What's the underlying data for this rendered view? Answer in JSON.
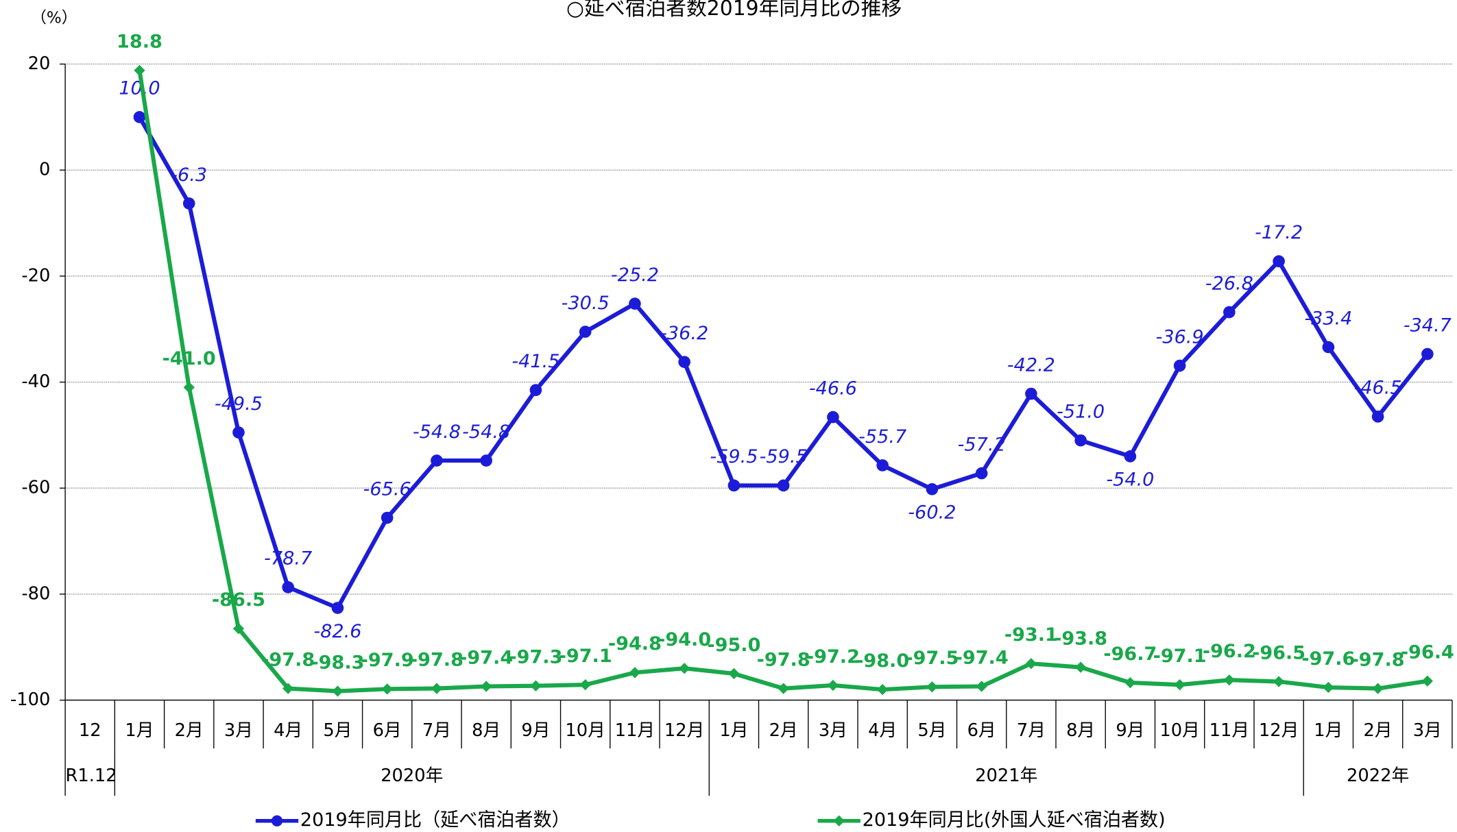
{
  "chart_data": {
    "type": "line",
    "title": "○延べ宿泊者数2019年同月比の推移",
    "y_unit": "（%）",
    "categories": [
      "12",
      "1月",
      "2月",
      "3月",
      "4月",
      "5月",
      "6月",
      "7月",
      "8月",
      "9月",
      "10月",
      "11月",
      "12月",
      "1月",
      "2月",
      "3月",
      "4月",
      "5月",
      "6月",
      "7月",
      "8月",
      "9月",
      "10月",
      "11月",
      "12月",
      "1月",
      "2月",
      "3月"
    ],
    "groups": [
      {
        "label": "R1.12",
        "count": 1
      },
      {
        "label": "2020年",
        "count": 12
      },
      {
        "label": "2021年",
        "count": 12
      },
      {
        "label": "2022年",
        "count": 3
      }
    ],
    "ylim": [
      -100,
      20
    ],
    "yticks": [
      -100,
      -80,
      -60,
      -40,
      -20,
      0,
      20
    ],
    "grid": true,
    "series": [
      {
        "name": "2019年同月比（延べ宿泊者数）",
        "color": "#1c1cd8",
        "marker": "circle",
        "values": [
          null,
          10.0,
          -6.3,
          -49.5,
          -78.7,
          -82.6,
          -65.6,
          -54.8,
          -54.8,
          -41.5,
          -30.5,
          -25.2,
          -36.2,
          -59.5,
          -59.5,
          -46.6,
          -55.7,
          -60.2,
          -57.2,
          -42.2,
          -51.0,
          -54.0,
          -36.9,
          -26.8,
          -17.2,
          -33.4,
          -46.5,
          -34.7
        ],
        "value_labels": [
          null,
          "10.0",
          "-6.3",
          "-49.5",
          "-78.7",
          "-82.6",
          "-65.6",
          "-54.8",
          "-54.8",
          "-41.5",
          "-30.5",
          "-25.2",
          "-36.2",
          "-59.5",
          "-59.5",
          "-46.6",
          "-55.7",
          "-60.2",
          "-57.2",
          "-42.2",
          "-51.0",
          "-54.0",
          "-36.9",
          "-26.8",
          "-17.2",
          "-33.4",
          "-46.5",
          "-34.7"
        ]
      },
      {
        "name": "2019年同月比(外国人延べ宿泊者数)",
        "color": "#19a84a",
        "marker": "diamond",
        "values": [
          null,
          18.8,
          -41.0,
          -86.5,
          -97.8,
          -98.3,
          -97.9,
          -97.8,
          -97.4,
          -97.3,
          -97.1,
          -94.8,
          -94.0,
          -95.0,
          -97.8,
          -97.2,
          -98.0,
          -97.5,
          -97.4,
          -93.1,
          -93.8,
          -96.7,
          -97.1,
          -96.2,
          -96.5,
          -97.6,
          -97.8,
          -96.4
        ],
        "value_labels": [
          null,
          "18.8",
          "-41.0",
          "-86.5",
          "-97.8",
          "-98.3",
          "-97.9",
          "-97.8",
          "-97.4",
          "-97.3",
          "-97.1",
          "-94.8",
          "-94.0",
          "-95.0",
          "-97.8",
          "-97.2",
          "-98.0",
          "-97.5",
          "-97.4",
          "-93.1",
          "-93.8",
          "-96.7",
          "-97.1",
          "-96.2",
          "-96.5",
          "-97.6",
          "-97.8",
          "-96.4"
        ]
      }
    ]
  }
}
